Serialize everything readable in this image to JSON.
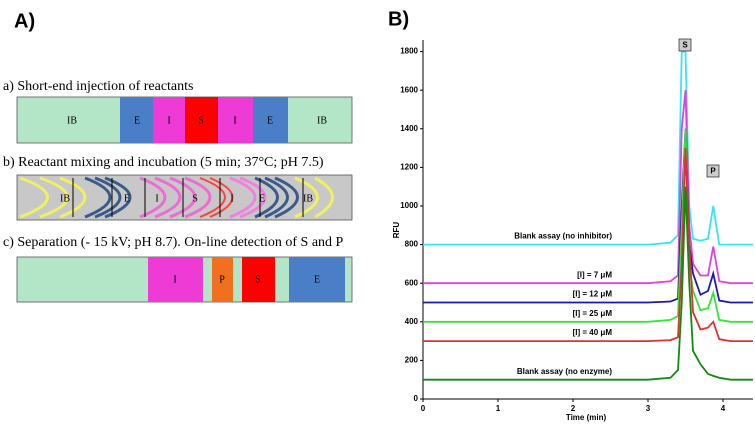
{
  "panel_a": {
    "label": "A)",
    "rows": [
      {
        "title": "a) Short-end injection of reactants",
        "segments": [
          "IB",
          "E",
          "I",
          "S",
          "I",
          "E",
          "IB"
        ]
      },
      {
        "title": "b) Reactant mixing and incubation (5 min; 37°C; pH 7.5)",
        "segments": [
          "IB",
          "E",
          "I",
          "S",
          "I",
          "E",
          "IB"
        ]
      },
      {
        "title": "c) Separation (- 15 kV; pH 8.7). On-line detection of S and P",
        "segments": [
          "I",
          "P",
          "S",
          "E"
        ]
      }
    ]
  },
  "chart_data": {
    "type": "line",
    "panel_label": "B)",
    "x_label": "Time (min)",
    "y_label": "RFU",
    "annotations": [
      "S",
      "P"
    ],
    "x": [
      0,
      3.0,
      3.3,
      3.4,
      3.45,
      3.5,
      3.55,
      3.6,
      3.7,
      3.8,
      3.87,
      3.95,
      4.1,
      4.4
    ],
    "xlim": [
      0,
      4.4
    ],
    "xticks": [
      0,
      1,
      2,
      3,
      4
    ],
    "ylim": [
      0,
      1860
    ],
    "yticks": [
      0,
      200,
      400,
      600,
      800,
      1000,
      1200,
      1400,
      1600,
      1800
    ],
    "series": [
      {
        "name": "Blank assay (no inhibitor)",
        "color": "#33e6f0",
        "values": [
          800,
          800,
          810,
          850,
          1800,
          1800,
          1000,
          830,
          820,
          830,
          1000,
          800,
          800,
          800
        ]
      },
      {
        "name": "[I] = 7 μM",
        "color": "#e040e0",
        "values": [
          600,
          600,
          610,
          640,
          1400,
          1600,
          900,
          700,
          640,
          640,
          790,
          610,
          600,
          600
        ]
      },
      {
        "name": "[I] = 12 μM",
        "color": "#1a1aa8",
        "values": [
          500,
          500,
          505,
          520,
          1000,
          1400,
          800,
          650,
          540,
          560,
          650,
          510,
          500,
          500
        ]
      },
      {
        "name": "[I] = 25 μM",
        "color": "#33e633",
        "values": [
          400,
          400,
          410,
          430,
          900,
          1400,
          700,
          560,
          460,
          470,
          550,
          410,
          400,
          400
        ]
      },
      {
        "name": "[I] = 40 μM",
        "color": "#e03030",
        "values": [
          300,
          300,
          305,
          320,
          700,
          1300,
          800,
          450,
          360,
          370,
          400,
          310,
          300,
          300
        ]
      },
      {
        "name": "Blank assay (no enzyme)",
        "color": "#118a11",
        "values": [
          100,
          100,
          110,
          150,
          500,
          1100,
          600,
          250,
          180,
          130,
          120,
          110,
          100,
          100
        ]
      }
    ]
  }
}
